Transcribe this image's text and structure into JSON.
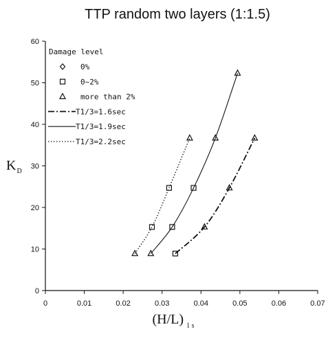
{
  "chart_data": {
    "type": "scatter",
    "title": "TTP  random two layers (1:1.5)",
    "xlabel": "(H/L)",
    "xlabel_subscript": "1 s",
    "ylabel": "K",
    "ylabel_subscript": "D",
    "xlim": [
      0,
      0.07
    ],
    "ylim": [
      0,
      60
    ],
    "x_ticks": [
      "0",
      "0.01",
      "0.02",
      "0.03",
      "0.04",
      "0.05",
      "0.06",
      "0.07"
    ],
    "y_ticks": [
      "0",
      "10",
      "20",
      "30",
      "40",
      "50",
      "60"
    ],
    "x_tick_values": [
      0,
      0.01,
      0.02,
      0.03,
      0.04,
      0.05,
      0.06,
      0.07
    ],
    "y_tick_values": [
      0,
      10,
      20,
      30,
      40,
      50,
      60
    ],
    "grid": false,
    "legend_title": "Damage level",
    "legend_placement": "top-left",
    "marker_series": [
      {
        "name": "0%",
        "marker": "diamond",
        "points": []
      },
      {
        "name": "0~2%",
        "marker": "square",
        "points": [
          {
            "x": 0.0334,
            "y": 8.9
          },
          {
            "x": 0.0326,
            "y": 15.3
          },
          {
            "x": 0.0381,
            "y": 24.7
          },
          {
            "x": 0.0274,
            "y": 15.3
          },
          {
            "x": 0.0318,
            "y": 24.7
          }
        ]
      },
      {
        "name": "more than 2%",
        "marker": "triangle",
        "points": [
          {
            "x": 0.023,
            "y": 8.9
          },
          {
            "x": 0.0271,
            "y": 8.9
          },
          {
            "x": 0.0409,
            "y": 15.3
          },
          {
            "x": 0.0473,
            "y": 24.7
          },
          {
            "x": 0.0371,
            "y": 36.7
          },
          {
            "x": 0.0437,
            "y": 36.7
          },
          {
            "x": 0.0538,
            "y": 36.7
          },
          {
            "x": 0.0494,
            "y": 52.3
          }
        ]
      }
    ],
    "line_series": [
      {
        "name": "T1/3=1.6sec",
        "style": "dashdot",
        "points": [
          {
            "x": 0.0334,
            "y": 8.9
          },
          {
            "x": 0.0409,
            "y": 15.3
          },
          {
            "x": 0.0473,
            "y": 24.7
          },
          {
            "x": 0.0538,
            "y": 36.7
          }
        ]
      },
      {
        "name": "T1/3=1.9sec",
        "style": "solid",
        "points": [
          {
            "x": 0.0271,
            "y": 8.9
          },
          {
            "x": 0.0326,
            "y": 15.3
          },
          {
            "x": 0.0381,
            "y": 24.7
          },
          {
            "x": 0.0437,
            "y": 36.7
          },
          {
            "x": 0.0494,
            "y": 52.3
          }
        ]
      },
      {
        "name": "T1/3=2.2sec",
        "style": "dotted",
        "points": [
          {
            "x": 0.023,
            "y": 8.9
          },
          {
            "x": 0.0274,
            "y": 15.3
          },
          {
            "x": 0.0318,
            "y": 24.7
          },
          {
            "x": 0.0371,
            "y": 36.7
          }
        ]
      }
    ],
    "legend_entries": [
      {
        "label": "0%",
        "kind": "marker",
        "marker": "diamond"
      },
      {
        "label": "0~2%",
        "kind": "marker",
        "marker": "square"
      },
      {
        "label": "more than 2%",
        "kind": "marker",
        "marker": "triangle"
      },
      {
        "label": "T1/3=1.6sec",
        "kind": "line",
        "style": "dashdot"
      },
      {
        "label": "T1/3=1.9sec",
        "kind": "line",
        "style": "solid"
      },
      {
        "label": "T1/3=2.2sec",
        "kind": "line",
        "style": "dotted"
      }
    ]
  }
}
